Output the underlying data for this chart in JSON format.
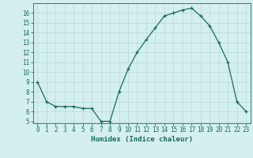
{
  "x": [
    0,
    1,
    2,
    3,
    4,
    5,
    6,
    7,
    8,
    9,
    10,
    11,
    12,
    13,
    14,
    15,
    16,
    17,
    18,
    19,
    20,
    21,
    22,
    23
  ],
  "y": [
    9,
    7,
    6.5,
    6.5,
    6.5,
    6.3,
    6.3,
    5.0,
    5.0,
    8.0,
    10.3,
    12.0,
    13.3,
    14.5,
    15.7,
    16.0,
    16.3,
    16.5,
    15.7,
    14.7,
    13.0,
    11.0,
    7.0,
    6.0
  ],
  "xlim": [
    -0.5,
    23.5
  ],
  "ylim": [
    4.8,
    17.0
  ],
  "yticks": [
    5,
    6,
    7,
    8,
    9,
    10,
    11,
    12,
    13,
    14,
    15,
    16
  ],
  "xticks": [
    0,
    1,
    2,
    3,
    4,
    5,
    6,
    7,
    8,
    9,
    10,
    11,
    12,
    13,
    14,
    15,
    16,
    17,
    18,
    19,
    20,
    21,
    22,
    23
  ],
  "xlabel": "Humidex (Indice chaleur)",
  "line_color": "#1a6b5a",
  "marker": "+",
  "bg_color": "#d4efef",
  "grid_color": "#b8d8d8",
  "tick_color": "#1a6b5a",
  "label_color": "#1a6b5a",
  "font_size_axis": 5.5,
  "font_size_xlabel": 6.5,
  "linewidth": 0.9,
  "markersize": 3.0
}
